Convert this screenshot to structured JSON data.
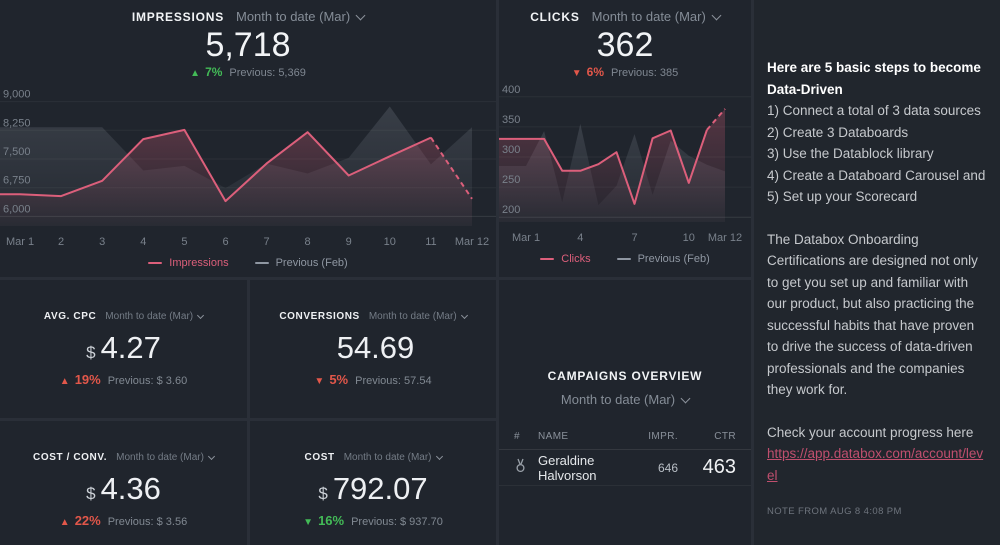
{
  "colors": {
    "accent_pink": "#dc5f7b",
    "prev_gray": "#9aa2ae",
    "good_green": "#43bb57",
    "bad_red": "#e2574a",
    "link_pink": "#c04f6e"
  },
  "impressions_card": {
    "title": "IMPRESSIONS",
    "range": "Month to date (Mar)",
    "value": "5,718",
    "delta": {
      "arrow": "▲",
      "pct": "7%",
      "color": "#43bb57"
    },
    "previous": "Previous: 5,369"
  },
  "clicks_card": {
    "title": "CLICKS",
    "range": "Month to date (Mar)",
    "value": "362",
    "delta": {
      "arrow": "▼",
      "pct": "6%",
      "color": "#e2574a"
    },
    "previous": "Previous: 385"
  },
  "kpis": {
    "avg_cpc": {
      "label": "AVG. CPC",
      "range": "Month to date (Mar)",
      "currency": "$",
      "value": "4.27",
      "delta": {
        "arrow": "▲",
        "pct": "19%",
        "color": "#e2574a"
      },
      "previous": "Previous: $ 3.60"
    },
    "conversions": {
      "label": "CONVERSIONS",
      "range": "Month to date (Mar)",
      "currency": "",
      "value": "54.69",
      "delta": {
        "arrow": "▼",
        "pct": "5%",
        "color": "#e2574a"
      },
      "previous": "Previous: 57.54"
    },
    "cost_conv": {
      "label": "COST / CONV.",
      "range": "Month to date (Mar)",
      "currency": "$",
      "value": "4.36",
      "delta": {
        "arrow": "▲",
        "pct": "22%",
        "color": "#e2574a"
      },
      "previous": "Previous: $ 3.56"
    },
    "cost": {
      "label": "COST",
      "range": "Month to date (Mar)",
      "currency": "$",
      "value": "792.07",
      "delta": {
        "arrow": "▼",
        "pct": "16%",
        "color": "#43bb57"
      },
      "previous": "Previous: $ 937.70"
    }
  },
  "campaigns": {
    "title": "CAMPAIGNS OVERVIEW",
    "range": "Month to date (Mar)",
    "columns": {
      "rank": "#",
      "name": "NAME",
      "impr": "IMPR.",
      "ctr": "CTR"
    },
    "rows": [
      {
        "name": "Geraldine Halvorson",
        "impr": "646",
        "ctr": "463"
      }
    ]
  },
  "note": {
    "heading": "Here are 5 basic steps to become Data-Driven",
    "steps": [
      "1) Connect a total of 3 data sources",
      "2) Create 3 Databoards",
      "3) Use the Datablock library",
      "4) Create a Databoard Carousel and",
      "5) Set up your Scorecard"
    ],
    "paragraph": "The Databox Onboarding Certifications are designed not only to get you set up and familiar with our product, but also practicing the successful habits that have proven to drive the success of data-driven professionals and the companies they work for.",
    "check_text": "Check your account progress here",
    "link": "https://app.databox.com/account/level",
    "footer": "NOTE FROM AUG 8 4:08 PM"
  },
  "chart_data": [
    {
      "type": "line",
      "title": "Impressions — Month to date (Mar)",
      "x": [
        1,
        2,
        3,
        4,
        5,
        6,
        7,
        8,
        9,
        10,
        11,
        12
      ],
      "xticks": [
        {
          "x": 1,
          "label": "Mar 1"
        },
        {
          "x": 2,
          "label": "2"
        },
        {
          "x": 3,
          "label": "3"
        },
        {
          "x": 4,
          "label": "4"
        },
        {
          "x": 5,
          "label": "5"
        },
        {
          "x": 6,
          "label": "6"
        },
        {
          "x": 7,
          "label": "7"
        },
        {
          "x": 8,
          "label": "8"
        },
        {
          "x": 9,
          "label": "9"
        },
        {
          "x": 10,
          "label": "10"
        },
        {
          "x": 11,
          "label": "11"
        },
        {
          "x": 12,
          "label": "Mar 12"
        }
      ],
      "ylim": [
        5750,
        9250
      ],
      "yticks": [
        {
          "v": 6000,
          "label": "6,000"
        },
        {
          "v": 6750,
          "label": "6,750"
        },
        {
          "v": 7500,
          "label": "7,500"
        },
        {
          "v": 8250,
          "label": "8,250"
        },
        {
          "v": 9000,
          "label": "9,000"
        }
      ],
      "grid": true,
      "legend_position": "bottom",
      "series": [
        {
          "name": "Previous (Feb)",
          "style": "area",
          "color": "#9aa2ae",
          "values": [
            8330,
            8330,
            8330,
            7200,
            7320,
            6740,
            7380,
            7120,
            7530,
            8870,
            7360,
            8330
          ]
        },
        {
          "name": "Impressions",
          "style": "line",
          "color": "#dc5f7b",
          "dash_from": 10,
          "values": [
            6580,
            6530,
            6930,
            8020,
            8260,
            6400,
            7380,
            8200,
            7070,
            7570,
            8060,
            6460
          ]
        }
      ]
    },
    {
      "type": "line",
      "title": "Clicks — Month to date (Mar)",
      "x": [
        1,
        2,
        3,
        4,
        5,
        6,
        7,
        8,
        9,
        10,
        11,
        12
      ],
      "xticks": [
        {
          "x": 1,
          "label": "Mar 1"
        },
        {
          "x": 4,
          "label": "4"
        },
        {
          "x": 7,
          "label": "7"
        },
        {
          "x": 10,
          "label": "10"
        },
        {
          "x": 12,
          "label": "Mar 12"
        }
      ],
      "ylim": [
        192,
        408
      ],
      "yticks": [
        {
          "v": 200,
          "label": "200"
        },
        {
          "v": 250,
          "label": "250"
        },
        {
          "v": 300,
          "label": "300"
        },
        {
          "v": 350,
          "label": "350"
        },
        {
          "v": 400,
          "label": "400"
        }
      ],
      "grid": true,
      "legend_position": "bottom",
      "series": [
        {
          "name": "Previous (Feb)",
          "style": "area",
          "color": "#9aa2ae",
          "values": [
            285,
            343,
            225,
            355,
            220,
            252,
            338,
            237,
            327,
            302,
            287,
            276
          ]
        },
        {
          "name": "Clicks",
          "style": "line",
          "color": "#dc5f7b",
          "dash_from": 10,
          "values": [
            330,
            330,
            277,
            277,
            288,
            308,
            222,
            331,
            344,
            257,
            345,
            380
          ]
        }
      ]
    }
  ]
}
